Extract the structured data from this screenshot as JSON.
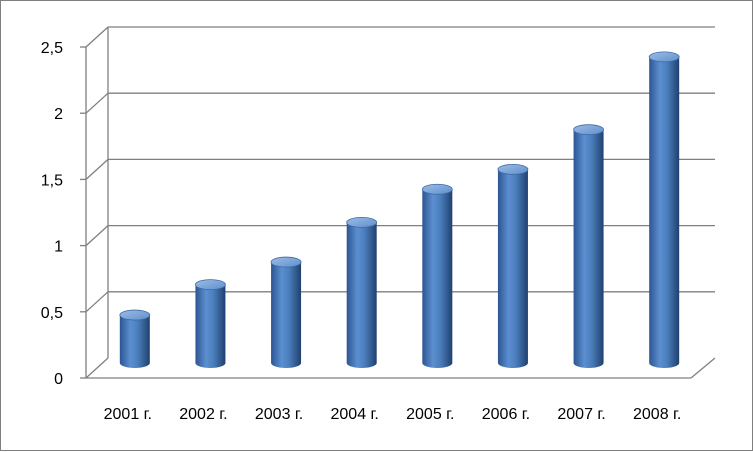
{
  "chart_data": {
    "type": "bar",
    "style": "3d-cylinder",
    "categories": [
      "2001 г.",
      "2002 г.",
      "2003 г.",
      "2004 г.",
      "2005 г.",
      "2006 г.",
      "2007 г.",
      "2008 г."
    ],
    "values": [
      0.4,
      0.63,
      0.8,
      1.1,
      1.35,
      1.5,
      1.8,
      2.35
    ],
    "yticks": [
      "0",
      "0,5",
      "1",
      "1,5",
      "2",
      "2,5"
    ],
    "ylim": [
      0,
      2.5
    ],
    "grid": true,
    "legend": "none",
    "colors": {
      "bar": "#4a7ebb",
      "bar_dark": "#24477a",
      "bar_light": "#8fb4e3",
      "grid": "#7f7f7f"
    }
  }
}
